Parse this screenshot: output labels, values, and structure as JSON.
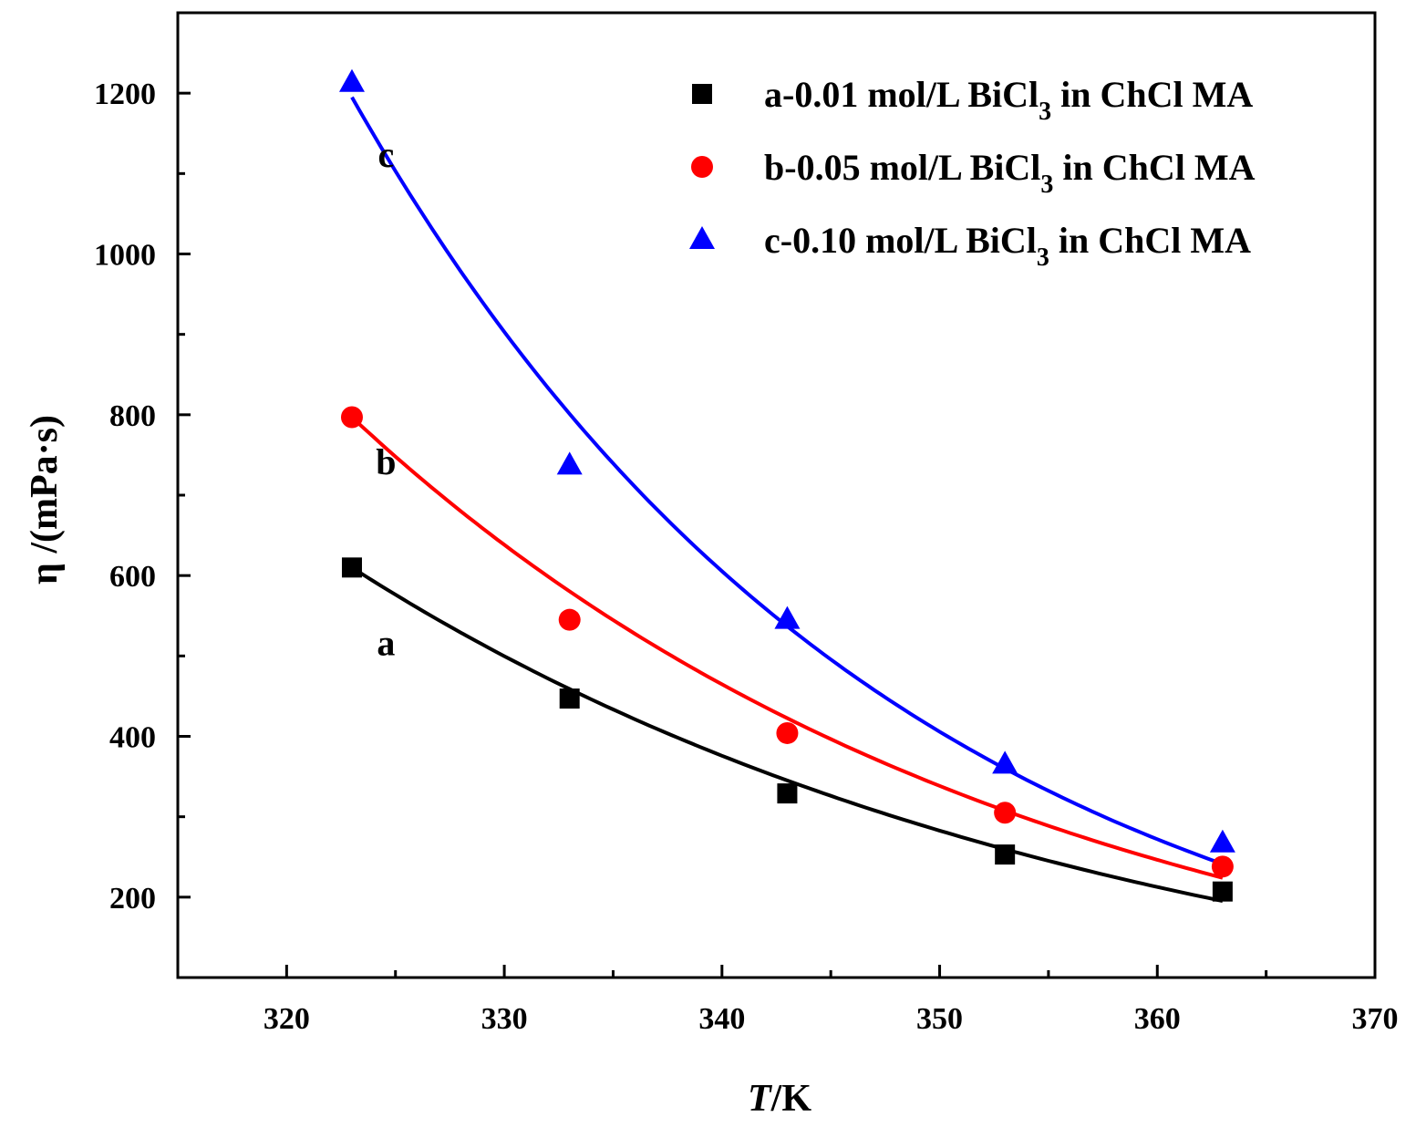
{
  "chart_data": {
    "type": "scatter",
    "xlabel": {
      "italic": "T",
      "rest": "/K"
    },
    "ylabel": "η /(mPa·s)",
    "xlim": [
      315,
      370
    ],
    "ylim": [
      100,
      1300
    ],
    "x_ticks": [
      320,
      330,
      340,
      350,
      360,
      370
    ],
    "y_ticks": [
      200,
      400,
      600,
      800,
      1000,
      1200
    ],
    "x_minor_ticks": [
      325,
      335,
      345,
      355,
      365
    ],
    "y_minor_ticks": [
      300,
      500,
      700,
      900,
      1100
    ],
    "x": [
      323,
      333,
      343,
      353,
      363
    ],
    "series": [
      {
        "id": "a",
        "curve_label": "a",
        "legend": {
          "prefix": "a-0.01 mol/L BiCl",
          "subscript": "3",
          "suffix": " in ChCl MA"
        },
        "marker": "square",
        "color": "#000000",
        "values": [
          610,
          447,
          329,
          253,
          207
        ],
        "fit": {
          "A": 610,
          "B": 0.02848
        }
      },
      {
        "id": "b",
        "curve_label": "b",
        "legend": {
          "prefix": "b-0.05 mol/L BiCl",
          "subscript": "3",
          "suffix": " in ChCl MA"
        },
        "marker": "circle",
        "color": "#ff0000",
        "values": [
          797,
          545,
          404,
          305,
          238
        ],
        "fit": {
          "A": 797,
          "B": 0.03173
        }
      },
      {
        "id": "c",
        "curve_label": "c",
        "legend": {
          "prefix": "c-0.10 mol/L BiCl",
          "subscript": "3",
          "suffix": " in ChCl MA"
        },
        "marker": "triangle",
        "color": "#0000ff",
        "values": [
          1213,
          737,
          545,
          365,
          267
        ],
        "fit": {
          "A": 1195,
          "B": 0.04
        }
      }
    ]
  }
}
